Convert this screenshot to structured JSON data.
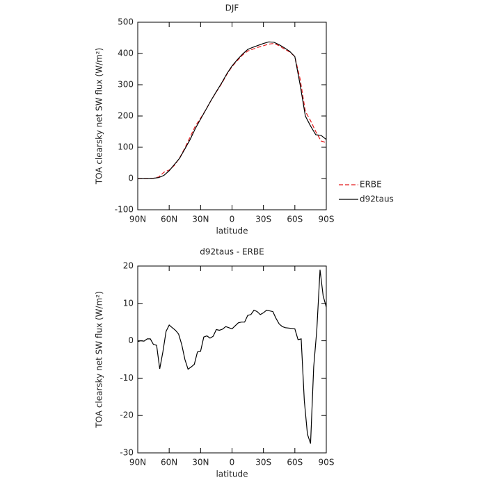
{
  "chart_data": [
    {
      "type": "line",
      "title": "DJF",
      "xlabel": "latitude",
      "ylabel": "TOA clearsky net SW flux (W/m²)",
      "x": [
        90,
        85,
        80,
        75,
        70,
        65,
        60,
        55,
        50,
        45,
        40,
        35,
        30,
        25,
        20,
        15,
        10,
        5,
        0,
        -5,
        -10,
        -15,
        -20,
        -25,
        -30,
        -35,
        -40,
        -45,
        -50,
        -55,
        -60,
        -65,
        -70,
        -75,
        -80,
        -85,
        -90
      ],
      "series": [
        {
          "name": "ERBE",
          "color": "#e41a1c",
          "dash": true,
          "values": [
            0,
            0,
            0,
            1,
            5,
            20,
            27,
            42,
            66,
            98,
            133,
            168,
            193,
            220,
            250,
            277,
            303,
            333,
            358,
            377,
            395,
            408,
            414,
            420,
            425,
            430,
            432,
            425,
            414,
            405,
            390,
            318,
            215,
            185,
            150,
            120,
            115
          ]
        },
        {
          "name": "d92taus",
          "color": "#000000",
          "dash": false,
          "values": [
            0,
            0,
            0,
            1,
            3,
            10,
            25,
            45,
            65,
            95,
            125,
            160,
            190,
            220,
            250,
            278,
            305,
            335,
            360,
            380,
            398,
            413,
            420,
            426,
            432,
            437,
            436,
            428,
            418,
            407,
            390,
            300,
            200,
            168,
            140,
            138,
            125
          ]
        }
      ],
      "xlim": [
        90,
        -90
      ],
      "xticks": [
        {
          "value": 90,
          "label": "90N"
        },
        {
          "value": 60,
          "label": "60N"
        },
        {
          "value": 30,
          "label": "30N"
        },
        0,
        {
          "value": -30,
          "label": "30S"
        },
        {
          "value": -60,
          "label": "60S"
        },
        {
          "value": -90,
          "label": "90S"
        }
      ],
      "ylim": [
        -100,
        500
      ],
      "yticks": [
        -100,
        0,
        100,
        200,
        300,
        400,
        500
      ],
      "legend": "right"
    },
    {
      "type": "line",
      "title": "d92taus - ERBE",
      "xlabel": "latitude",
      "ylabel": "TOA clearsky net SW flux (W/m²)",
      "x": [
        90,
        87,
        84,
        81,
        78,
        75,
        72,
        69,
        66,
        63,
        60,
        57,
        54,
        51,
        48,
        45,
        42,
        39,
        36,
        33,
        30,
        27,
        24,
        21,
        18,
        15,
        12,
        9,
        6,
        3,
        0,
        -3,
        -6,
        -9,
        -12,
        -15,
        -18,
        -21,
        -24,
        -27,
        -30,
        -33,
        -36,
        -39,
        -42,
        -45,
        -48,
        -51,
        -54,
        -57,
        -60,
        -63,
        -66,
        -69,
        -72,
        -75,
        -78,
        -81,
        -84,
        -87,
        -90
      ],
      "series": [
        {
          "color": "#000000",
          "dash": false,
          "values": [
            -0.2,
            0,
            -0.1,
            0.5,
            0.5,
            -1,
            -1.2,
            -7.5,
            -3,
            2.5,
            4.2,
            3.5,
            2.8,
            1.8,
            -1,
            -5,
            -7.6,
            -7,
            -6.3,
            -3,
            -2.8,
            1,
            1.3,
            0.7,
            1.2,
            3,
            2.8,
            3.1,
            3.8,
            3.5,
            3.2,
            4,
            4.8,
            5,
            5,
            6.8,
            7,
            8.2,
            7.8,
            7,
            7.5,
            8.2,
            8,
            7.8,
            6,
            4.5,
            3.8,
            3.5,
            3.4,
            3.3,
            3.2,
            0.3,
            0.5,
            -16,
            -25,
            -27.5,
            -7,
            3,
            19,
            12,
            9
          ]
        }
      ],
      "xlim": [
        90,
        -90
      ],
      "xticks": [
        {
          "value": 90,
          "label": "90N"
        },
        {
          "value": 60,
          "label": "60N"
        },
        {
          "value": 30,
          "label": "30N"
        },
        0,
        {
          "value": -30,
          "label": "30S"
        },
        {
          "value": -60,
          "label": "60S"
        },
        {
          "value": -90,
          "label": "90S"
        }
      ],
      "ylim": [
        -30,
        20
      ],
      "yticks": [
        -30,
        -20,
        -10,
        0,
        10,
        20
      ]
    }
  ]
}
